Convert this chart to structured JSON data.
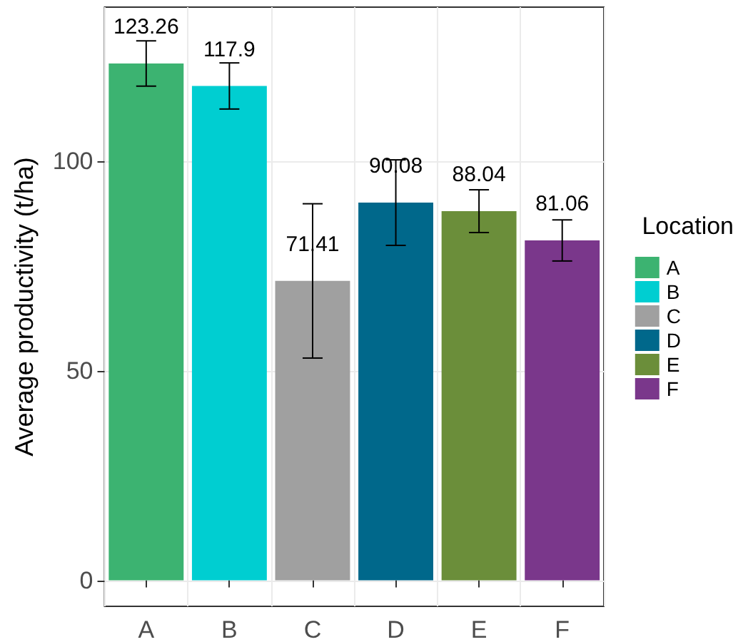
{
  "chart_data": {
    "type": "bar",
    "ylabel": "Average productivity (t/ha)",
    "legend_title": "Location",
    "categories": [
      "A",
      "B",
      "C",
      "D",
      "E",
      "F"
    ],
    "series": [
      {
        "name": "A",
        "color": "#3cb371",
        "values": [
          123.26,
          null,
          null,
          null,
          null,
          null
        ],
        "errors": [
          5.4,
          null,
          null,
          null,
          null,
          null
        ]
      },
      {
        "name": "B",
        "color": "#00ced1",
        "values": [
          null,
          117.9,
          null,
          null,
          null,
          null
        ],
        "errors": [
          null,
          5.5,
          null,
          null,
          null,
          null
        ]
      },
      {
        "name": "C",
        "color": "#a0a0a0",
        "values": [
          null,
          null,
          71.41,
          null,
          null,
          null
        ],
        "errors": [
          null,
          null,
          18.4,
          null,
          null,
          null
        ]
      },
      {
        "name": "D",
        "color": "#00688b",
        "values": [
          null,
          null,
          null,
          90.08,
          null,
          null
        ],
        "errors": [
          null,
          null,
          null,
          10.2,
          null,
          null
        ]
      },
      {
        "name": "E",
        "color": "#6b8e3a",
        "values": [
          null,
          null,
          null,
          null,
          88.04,
          null
        ],
        "errors": [
          null,
          null,
          null,
          null,
          5.1,
          null
        ]
      },
      {
        "name": "F",
        "color": "#7a378b",
        "values": [
          null,
          null,
          null,
          null,
          null,
          81.06
        ],
        "errors": [
          null,
          null,
          null,
          null,
          null,
          4.9
        ]
      }
    ],
    "data_labels": true,
    "legend": "right",
    "grid": true,
    "ylim": [
      -6.2,
      136.7
    ],
    "yticks": [
      0,
      50,
      100
    ]
  }
}
